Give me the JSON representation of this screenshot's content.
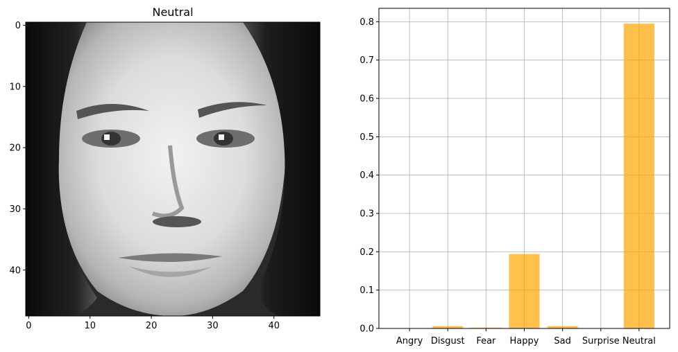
{
  "image_panel": {
    "title": "Neutral",
    "xticks": [
      0,
      10,
      20,
      30,
      40
    ],
    "yticks": [
      0,
      10,
      20,
      30,
      40
    ],
    "extent": [
      -0.5,
      47.5
    ],
    "subject": "grayscale-face-image"
  },
  "chart_data": {
    "type": "bar",
    "categories": [
      "Angry",
      "Disgust",
      "Fear",
      "Happy",
      "Sad",
      "Surprise",
      "Neutral"
    ],
    "values": [
      0.0005,
      0.006,
      0.002,
      0.194,
      0.006,
      0.0005,
      0.795
    ],
    "ylim": [
      0,
      0.835
    ],
    "yticks": [
      0.0,
      0.1,
      0.2,
      0.3,
      0.4,
      0.5,
      0.6,
      0.7,
      0.8
    ],
    "ytick_labels": [
      "0.0",
      "0.1",
      "0.2",
      "0.3",
      "0.4",
      "0.5",
      "0.6",
      "0.7",
      "0.8"
    ],
    "bar_color": "#FFA500",
    "bar_alpha": 0.7,
    "grid": true,
    "title": "",
    "xlabel": "",
    "ylabel": ""
  }
}
